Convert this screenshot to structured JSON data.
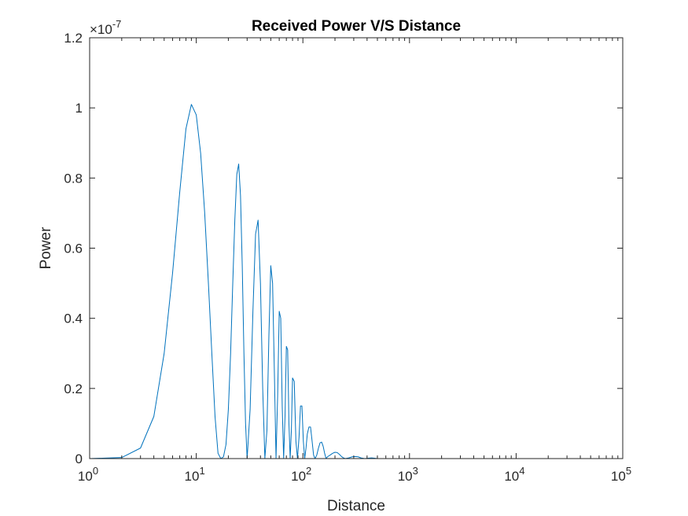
{
  "chart_data": {
    "type": "line",
    "title": "Received Power V/S Distance",
    "xlabel": "Distance",
    "ylabel": "Power",
    "x_scale": "log",
    "xlim": [
      1,
      100000
    ],
    "ylim": [
      0,
      1.2e-07
    ],
    "y_exponent_label": "×10",
    "y_exponent_power": "-7",
    "x_ticks": [
      {
        "value": 1,
        "base": "10",
        "exp": "0"
      },
      {
        "value": 10,
        "base": "10",
        "exp": "1"
      },
      {
        "value": 100,
        "base": "10",
        "exp": "2"
      },
      {
        "value": 1000,
        "base": "10",
        "exp": "3"
      },
      {
        "value": 10000,
        "base": "10",
        "exp": "4"
      },
      {
        "value": 100000,
        "base": "10",
        "exp": "5"
      }
    ],
    "y_ticks": [
      {
        "value": 0,
        "label": "0"
      },
      {
        "value": 2e-08,
        "label": "0.2"
      },
      {
        "value": 4e-08,
        "label": "0.4"
      },
      {
        "value": 6e-08,
        "label": "0.6"
      },
      {
        "value": 8e-08,
        "label": "0.8"
      },
      {
        "value": 1e-07,
        "label": "1"
      },
      {
        "value": 1.2e-07,
        "label": "1.2"
      }
    ],
    "grid": false,
    "series": [
      {
        "color": "#0072BD",
        "x": [
          1,
          2,
          3,
          4,
          5,
          6,
          7,
          8,
          9,
          10,
          11,
          12,
          13,
          14,
          15,
          16,
          17,
          18,
          19,
          20,
          21,
          22,
          23,
          24,
          25,
          26,
          27,
          28,
          29,
          30,
          32,
          34,
          36,
          38,
          40,
          42,
          44,
          46,
          48,
          50,
          52,
          54,
          56,
          58,
          60,
          62,
          64,
          66,
          68,
          70,
          72,
          74,
          76,
          78,
          80,
          83,
          86,
          89,
          92,
          95,
          98,
          101,
          104,
          107,
          110,
          114,
          118,
          122,
          126,
          130,
          135,
          140,
          145,
          150,
          155,
          160,
          165,
          170,
          180,
          190,
          200,
          210,
          220,
          230,
          240,
          250,
          270,
          290,
          310,
          330,
          350,
          380,
          410,
          440,
          470,
          500,
          600,
          800,
          1000,
          2000,
          5000,
          10000,
          100000
        ],
        "y": [
          0,
          3e-10,
          3e-09,
          1.2e-08,
          3e-08,
          5.3e-08,
          7.6e-08,
          9.4e-08,
          1.01e-07,
          9.8e-08,
          8.7e-08,
          7e-08,
          5e-08,
          3e-08,
          1.2e-08,
          1.5e-09,
          0,
          5e-10,
          4e-09,
          1.4e-08,
          3e-08,
          5e-08,
          6.8e-08,
          8.1e-08,
          8.4e-08,
          7.5e-08,
          5.5e-08,
          3e-08,
          1e-08,
          0,
          1.4e-08,
          4.2e-08,
          6.4e-08,
          6.8e-08,
          5e-08,
          2e-08,
          0,
          8e-09,
          3.5e-08,
          5.5e-08,
          5e-08,
          2.5e-08,
          0,
          1.8e-08,
          4.2e-08,
          4e-08,
          1.5e-08,
          0,
          1.2e-08,
          3.2e-08,
          3.1e-08,
          1e-08,
          0,
          8e-09,
          2.3e-08,
          2.2e-08,
          5e-09,
          0,
          6e-09,
          1.5e-08,
          1.5e-08,
          5e-09,
          0,
          3e-09,
          7e-09,
          9e-09,
          9e-09,
          5e-09,
          1e-09,
          0,
          1e-09,
          3e-09,
          4.5e-09,
          4.7e-09,
          3.5e-09,
          1.5e-09,
          0,
          5e-10,
          1e-09,
          1.5e-09,
          1.8e-09,
          1.7e-09,
          1.2e-09,
          6e-10,
          2e-10,
          0,
          2e-10,
          5e-10,
          6e-10,
          5e-10,
          2e-10,
          0,
          1e-10,
          2e-10,
          1e-10,
          0,
          0,
          0,
          0,
          0,
          0,
          0,
          0
        ]
      }
    ]
  }
}
